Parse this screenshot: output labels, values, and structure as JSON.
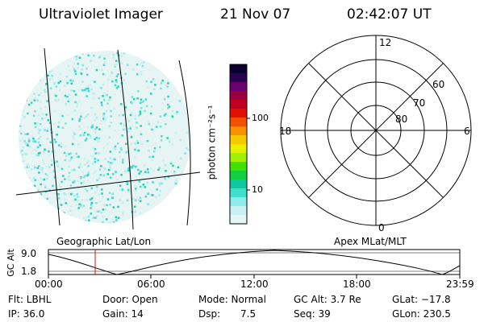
{
  "header": {
    "instrument": "Ultraviolet Imager",
    "date": "21 Nov 07",
    "time": "02:42:07 UT"
  },
  "colorbar": {
    "unit_label": "photon cm⁻²s⁻¹",
    "ticks": [
      "100",
      "10"
    ],
    "colors": [
      "#0a0030",
      "#2a0050",
      "#6a0070",
      "#9a0040",
      "#c00020",
      "#e01000",
      "#f05000",
      "#f89000",
      "#f8c800",
      "#e8f000",
      "#a0f000",
      "#40e000",
      "#10d040",
      "#10c8a0",
      "#40e0d0",
      "#90ecec",
      "#c8f2f2",
      "#e4f6f6"
    ]
  },
  "polar": {
    "labels": {
      "top": "12",
      "bottom": "0",
      "left": "18",
      "right": "6"
    },
    "lat_labels": [
      "60",
      "70",
      "80"
    ]
  },
  "plot": {
    "left_title": "Geographic Lat/Lon",
    "right_title": "Apex MLat/MLT",
    "ylabel": "GC Alt",
    "yticks": [
      "9.0",
      "1.8"
    ],
    "xticks": [
      "00:00",
      "06:00",
      "12:00",
      "18:00",
      "23:59"
    ]
  },
  "status": {
    "flt": "Flt: LBHL",
    "ip": "IP: 36.0",
    "door": "Door: Open",
    "gain": "Gain: 14",
    "mode": "Mode: Normal",
    "dsp_label": "Dsp:",
    "dsp_value": "7.5",
    "gc_alt": "GC Alt: 3.7 Re",
    "seq": "Seq: 39",
    "glat": "GLat: −17.8",
    "glon": "GLon: 230.5"
  }
}
